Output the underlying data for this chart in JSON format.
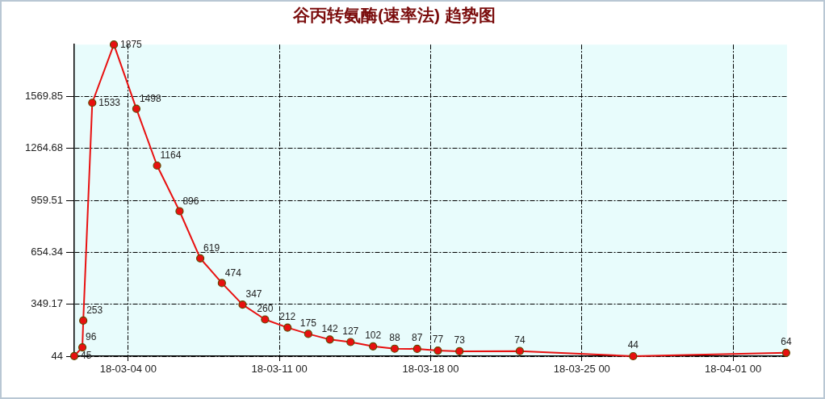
{
  "chart_data": {
    "type": "line",
    "title": "谷丙转氨酶(速率法) 趋势图",
    "x": [
      "--03-01T12:00",
      "--03-01T21:00",
      "--03-01T22:00",
      "--03-02T08:00",
      "--03-03T08:00",
      "--03-04T09:00",
      "--03-05T08:00",
      "--03-06T09:00",
      "--03-07T08:00",
      "--03-08T08:00",
      "--03-09T07:00",
      "--03-10T08:00",
      "--03-11T09:00",
      "--03-12T08:00",
      "--03-13T08:00",
      "--03-14T07:00",
      "--03-15T08:00",
      "--03-16T08:00",
      "--03-17T09:00",
      "--03-18T08:00",
      "--03-19T08:00",
      "--03-22T03:00",
      "--03-27T09:00",
      "--04-03T11:00"
    ],
    "series": [
      {
        "color": "#e81010",
        "values": [
          45,
          96,
          253,
          1533,
          1875,
          1498,
          1164,
          896,
          619,
          474,
          347,
          260,
          212,
          175,
          142,
          127,
          102,
          88,
          87,
          77,
          73,
          74,
          44,
          64
        ]
      }
    ],
    "xlim": [
      "--03-01T12:00",
      "--04-03T12:00"
    ],
    "xticks": [
      {
        "value": "--03-04T00:00",
        "label": "18-03-04 00"
      },
      {
        "value": "--03-11T00:00",
        "label": "18-03-11 00"
      },
      {
        "value": "--03-18T00:00",
        "label": "18-03-18 00"
      },
      {
        "value": "--03-25T00:00",
        "label": "18-03-25 00"
      },
      {
        "value": "--04-01T00:00",
        "label": "18-04-01 00"
      }
    ],
    "ylim": [
      44,
      1875
    ],
    "yticks": [
      44,
      349.17,
      654.34,
      959.51,
      1264.68,
      1569.85
    ],
    "grid": true,
    "marker": "circle",
    "line_style": "solid",
    "data_labels": true
  }
}
